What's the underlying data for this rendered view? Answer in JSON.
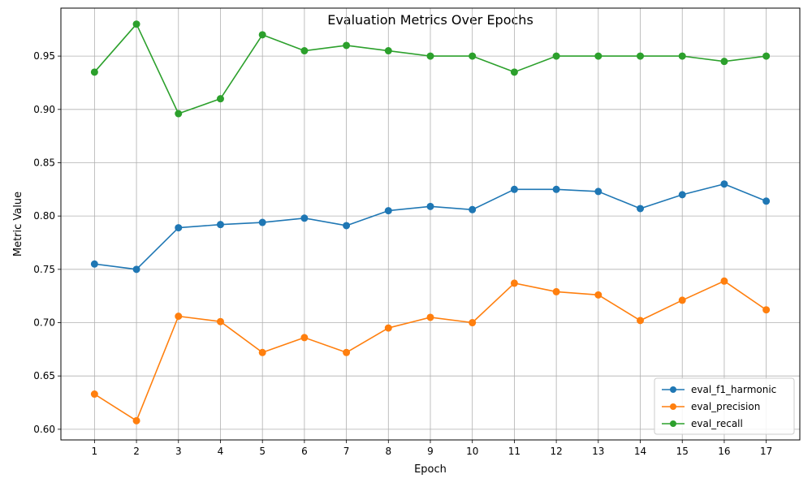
{
  "chart_data": {
    "type": "line",
    "title": "Evaluation Metrics Over Epochs",
    "xlabel": "Epoch",
    "ylabel": "Metric Value",
    "x": [
      1,
      2,
      3,
      4,
      5,
      6,
      7,
      8,
      9,
      10,
      11,
      12,
      13,
      14,
      15,
      16,
      17
    ],
    "xlim": [
      0.2,
      17.8
    ],
    "ylim": [
      0.59,
      0.995
    ],
    "yticks": [
      0.6,
      0.65,
      0.7,
      0.75,
      0.8,
      0.85,
      0.9,
      0.95
    ],
    "ytick_labels": [
      "0.60",
      "0.65",
      "0.70",
      "0.75",
      "0.80",
      "0.85",
      "0.90",
      "0.95"
    ],
    "grid": true,
    "legend_position": "lower-right",
    "marker": "circle",
    "series": [
      {
        "name": "eval_f1_harmonic",
        "color": "#1f77b4",
        "values": [
          0.755,
          0.75,
          0.789,
          0.792,
          0.794,
          0.798,
          0.791,
          0.805,
          0.809,
          0.806,
          0.825,
          0.825,
          0.823,
          0.807,
          0.82,
          0.83,
          0.814
        ]
      },
      {
        "name": "eval_precision",
        "color": "#ff7f0e",
        "values": [
          0.633,
          0.608,
          0.706,
          0.701,
          0.672,
          0.686,
          0.672,
          0.695,
          0.705,
          0.7,
          0.737,
          0.729,
          0.726,
          0.702,
          0.721,
          0.739,
          0.712
        ]
      },
      {
        "name": "eval_recall",
        "color": "#2ca02c",
        "values": [
          0.935,
          0.98,
          0.896,
          0.91,
          0.97,
          0.955,
          0.96,
          0.955,
          0.95,
          0.95,
          0.935,
          0.95,
          0.95,
          0.95,
          0.95,
          0.945,
          0.95
        ]
      }
    ]
  }
}
